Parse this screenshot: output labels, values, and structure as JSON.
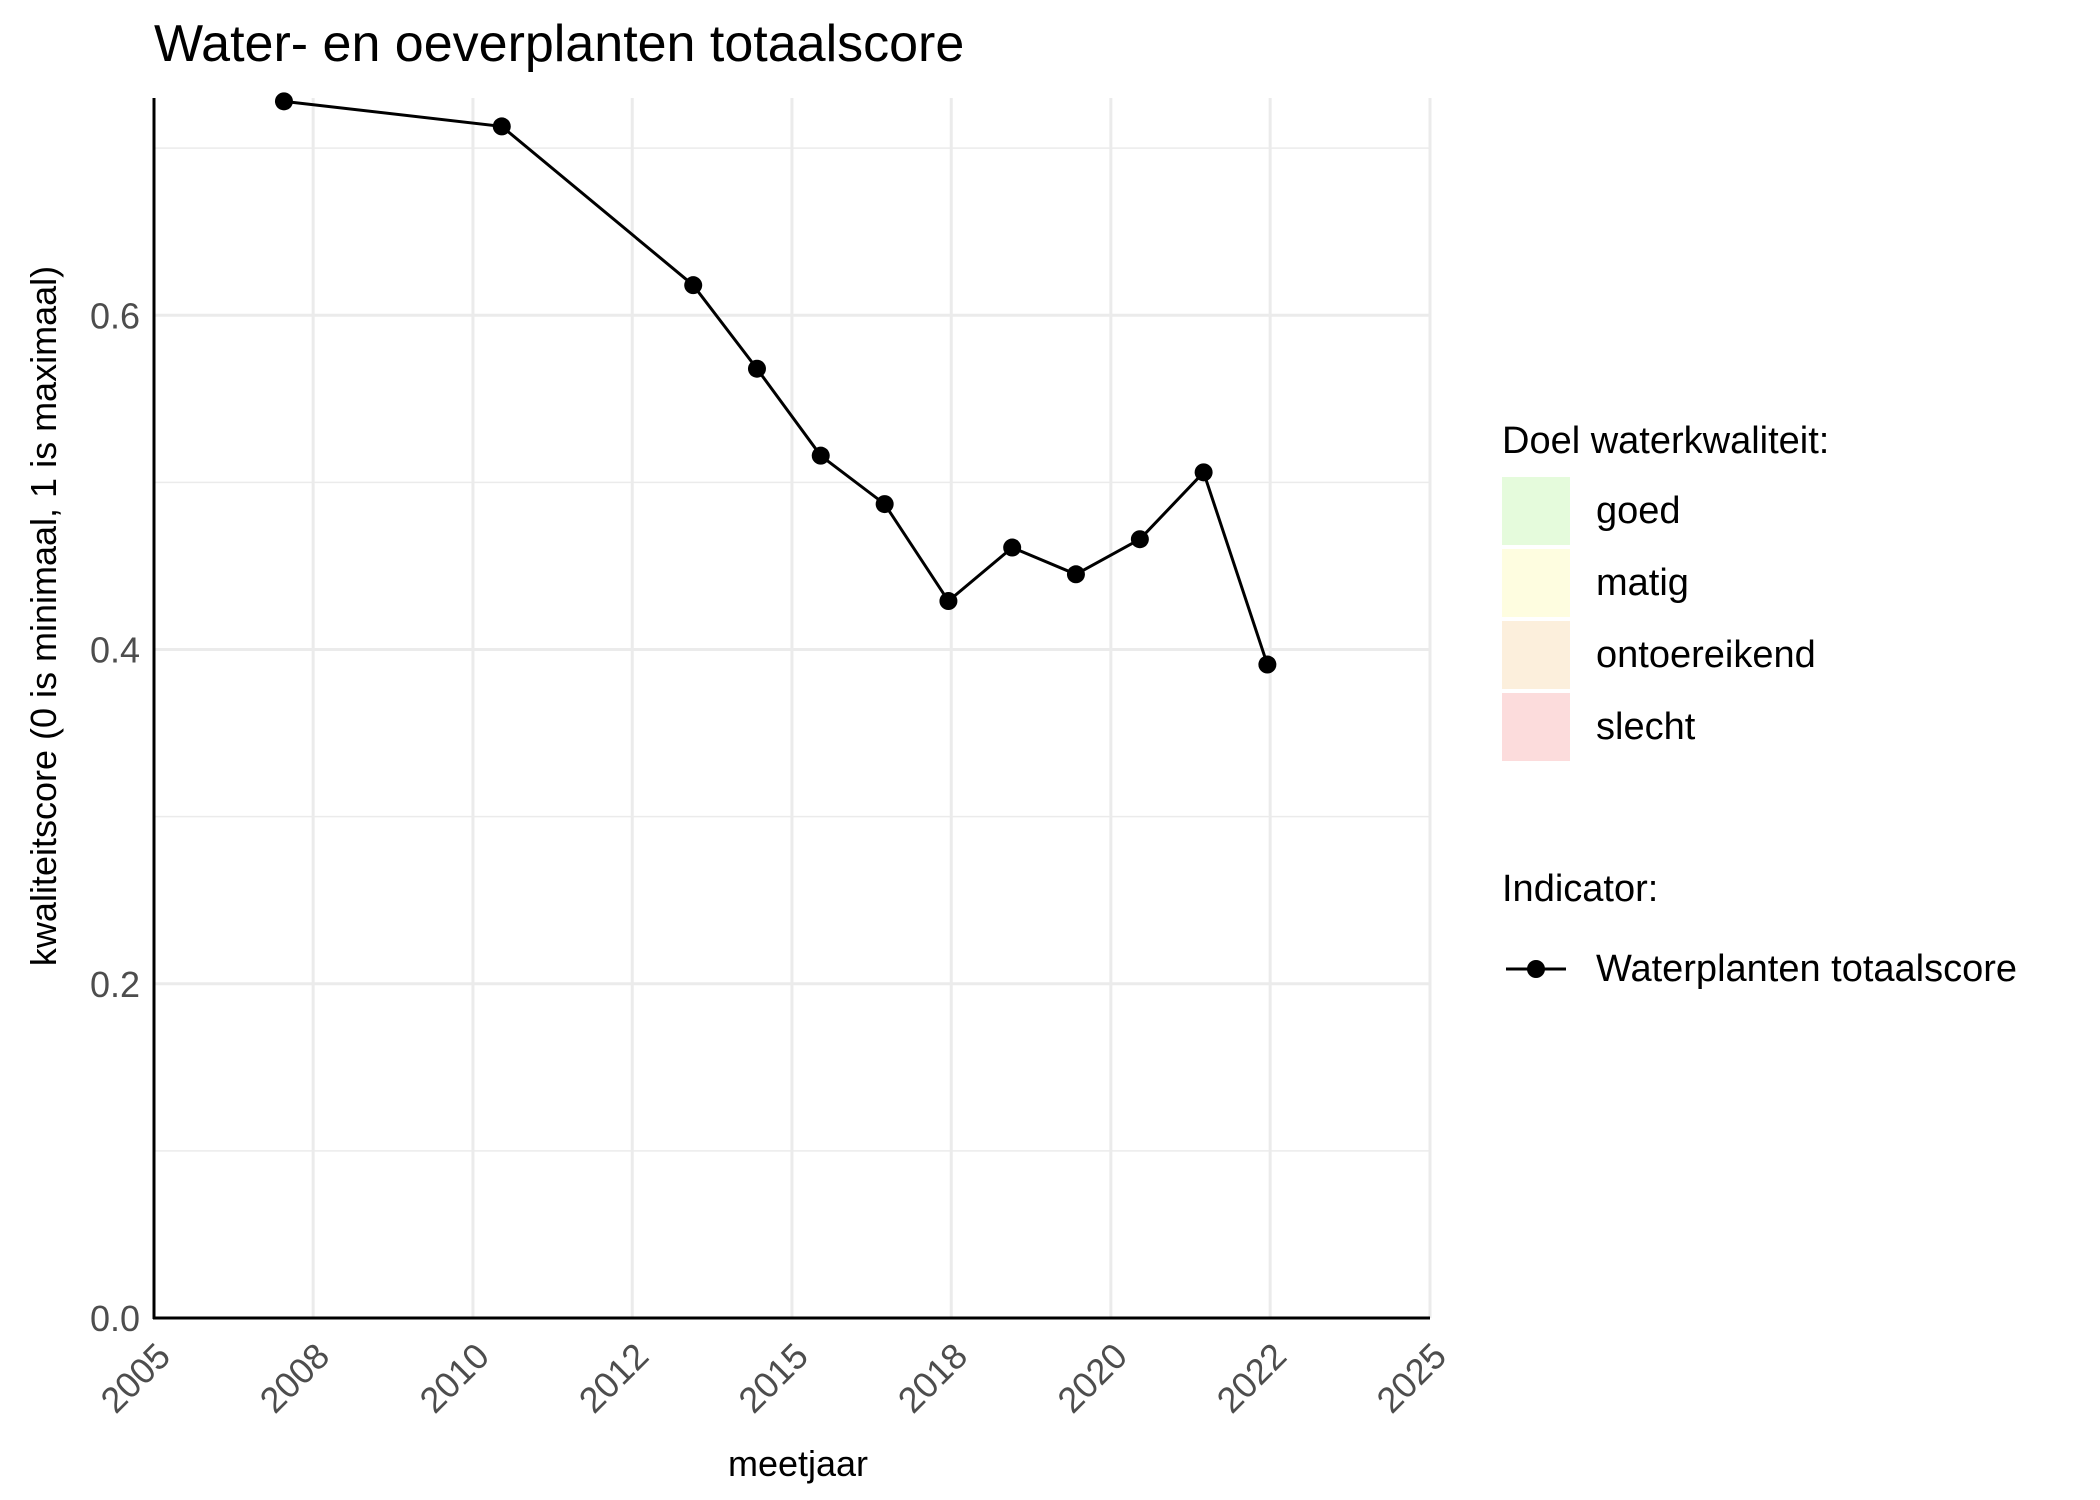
{
  "chart_data": {
    "type": "line",
    "title": "Water- en oeverplanten totaalscore",
    "xlabel": "meetjaar",
    "ylabel": "kwaliteitscore (0 is minimaal, 1 is maximaal)",
    "xlim": [
      "2005-01-01",
      "2025-01-01"
    ],
    "ylim": [
      0,
      0.73
    ],
    "x_ticks": [
      "2005-01-01",
      "2007-07-01",
      "2010-01-01",
      "2012-07-01",
      "2015-01-01",
      "2017-07-01",
      "2020-01-01",
      "2022-07-01",
      "2025-01-01"
    ],
    "x_tick_labels": [
      "2005",
      "2008",
      "2010",
      "2012",
      "2015",
      "2018",
      "2020",
      "2022",
      "2025"
    ],
    "y_ticks": [
      0.0,
      0.2,
      0.4,
      0.6
    ],
    "y_tick_labels": [
      "0.0",
      "0.2",
      "0.4",
      "0.6"
    ],
    "grid": true,
    "legend_position": "right",
    "series": [
      {
        "name": "Waterplanten totaalscore",
        "color": "#000000",
        "marker": "circle",
        "points": [
          {
            "x": "2007-01-15",
            "y": 0.728
          },
          {
            "x": "2010-06-15",
            "y": 0.713
          },
          {
            "x": "2013-06-15",
            "y": 0.618
          },
          {
            "x": "2014-06-15",
            "y": 0.568
          },
          {
            "x": "2015-06-15",
            "y": 0.516
          },
          {
            "x": "2016-06-15",
            "y": 0.487
          },
          {
            "x": "2017-06-15",
            "y": 0.429
          },
          {
            "x": "2018-06-15",
            "y": 0.461
          },
          {
            "x": "2019-06-15",
            "y": 0.445
          },
          {
            "x": "2020-06-15",
            "y": 0.466
          },
          {
            "x": "2021-06-15",
            "y": 0.506
          },
          {
            "x": "2022-06-15",
            "y": 0.391
          }
        ]
      }
    ]
  },
  "legend": {
    "quality_title": "Doel waterkwaliteit:",
    "quality_items": [
      {
        "label": "goed",
        "color": "#e5fbdc"
      },
      {
        "label": "matig",
        "color": "#fefde0"
      },
      {
        "label": "ontoereikend",
        "color": "#fcefdc"
      },
      {
        "label": "slecht",
        "color": "#fcdcdc"
      }
    ],
    "indicator_title": "Indicator:",
    "indicator_items": [
      {
        "label": "Waterplanten totaalscore",
        "color": "#000000"
      }
    ]
  },
  "colors": {
    "grid": "#ebebeb",
    "axis": "#000000",
    "tick_text": "#4d4d4d"
  }
}
